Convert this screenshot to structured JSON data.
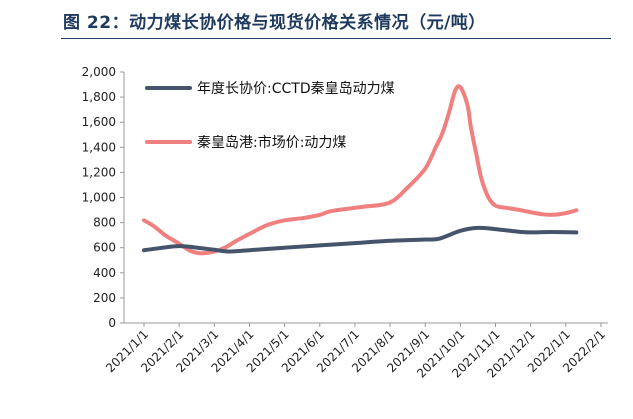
{
  "figure": {
    "title": "图 22：动力煤长协价格与现货价格关系情况（元/吨）"
  },
  "chart_data": {
    "type": "line",
    "title": "",
    "xlabel": "",
    "ylabel": "",
    "ylim": [
      0,
      2000
    ],
    "yticks": [
      0,
      200,
      400,
      600,
      800,
      1000,
      1200,
      1400,
      1600,
      1800,
      2000
    ],
    "ytick_labels": [
      "0",
      "200",
      "400",
      "600",
      "800",
      "1,000",
      "1,200",
      "1,400",
      "1,600",
      "1,800",
      "2,000"
    ],
    "categories": [
      "2021/1/1",
      "2021/2/1",
      "2021/3/1",
      "2021/4/1",
      "2021/5/1",
      "2021/6/1",
      "2021/7/1",
      "2021/8/1",
      "2021/9/1",
      "2021/10/1",
      "2021/11/1",
      "2021/12/1",
      "2022/1/1",
      "2022/2/1"
    ],
    "legend_position": "top-left",
    "series": [
      {
        "name": "年度长协价:CCTD秦皇岛动力煤",
        "color": "#44546a",
        "x": [
          1,
          1.3,
          2,
          2.6,
          3,
          3.4,
          4,
          5,
          6,
          7,
          8,
          9,
          9.4,
          10,
          10.5,
          11,
          11.7,
          12,
          12.6,
          13.3
        ],
        "values": [
          580,
          591,
          613,
          597,
          583,
          570,
          580,
          600,
          618,
          637,
          655,
          665,
          672,
          735,
          758,
          748,
          726,
          722,
          725,
          722
        ]
      },
      {
        "name": "秦皇岛港:市场价:动力煤",
        "color": "#f08080",
        "x": [
          1,
          1.3,
          1.6,
          2,
          2.3,
          2.6,
          3,
          3.3,
          3.6,
          4,
          4.5,
          5,
          5.5,
          6,
          6.3,
          7,
          7.3,
          8,
          8.5,
          9,
          9.3,
          9.5,
          9.7,
          9.85,
          10,
          10.2,
          10.3,
          10.45,
          10.6,
          10.8,
          11,
          11.3,
          11.7,
          12,
          12.3,
          12.6,
          13,
          13.3
        ],
        "values": [
          818,
          768,
          700,
          632,
          578,
          555,
          570,
          600,
          650,
          710,
          780,
          818,
          835,
          862,
          890,
          918,
          928,
          960,
          1080,
          1230,
          1400,
          1520,
          1700,
          1850,
          1880,
          1740,
          1560,
          1350,
          1150,
          1000,
          935,
          918,
          900,
          883,
          868,
          862,
          876,
          898
        ]
      }
    ]
  }
}
